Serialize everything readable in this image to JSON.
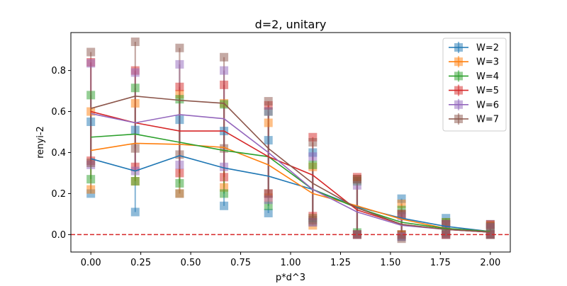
{
  "chart_data": {
    "type": "line",
    "title": "d=2, unitary",
    "xlabel": "p*d^3",
    "ylabel": "renyi-2",
    "xlim": [
      -0.1,
      2.1
    ],
    "ylim": [
      -0.085,
      0.985
    ],
    "xticks": [
      0.0,
      0.25,
      0.5,
      0.75,
      1.0,
      1.25,
      1.5,
      1.75,
      2.0
    ],
    "xtick_labels": [
      "0.00",
      "0.25",
      "0.50",
      "0.75",
      "1.00",
      "1.25",
      "1.50",
      "1.75",
      "2.00"
    ],
    "yticks": [
      0.0,
      0.2,
      0.4,
      0.6,
      0.8
    ],
    "ytick_labels": [
      "0.0",
      "0.2",
      "0.4",
      "0.6",
      "0.8"
    ],
    "grid": false,
    "legend_position": "upper-right",
    "reference_line": {
      "y": 0.0,
      "color": "#d62728",
      "style": "dashed"
    },
    "x": [
      0.0,
      0.2222,
      0.4444,
      0.6667,
      0.8889,
      1.1111,
      1.3333,
      1.5556,
      1.7778,
      2.0
    ],
    "series": [
      {
        "name": "W=2",
        "color": "#1f77b4",
        "values": [
          0.37,
          0.31,
          0.385,
          0.325,
          0.285,
          0.22,
          0.135,
          0.08,
          0.04,
          0.015
        ],
        "samples": [
          [
            0.55,
            0.2
          ],
          [
            0.51,
            0.11
          ],
          [
            0.56,
            0.2
          ],
          [
            0.505,
            0.14
          ],
          [
            0.46,
            0.105
          ],
          [
            0.4,
            0.06
          ],
          [
            0.27,
            0.0
          ],
          [
            0.175,
            -0.01
          ],
          [
            0.08,
            0.01
          ],
          [
            0.05,
            0.0
          ]
        ]
      },
      {
        "name": "W=3",
        "color": "#ff7f0e",
        "values": [
          0.41,
          0.445,
          0.44,
          0.425,
          0.34,
          0.2,
          0.14,
          0.075,
          0.03,
          0.015
        ],
        "samples": [
          [
            0.6,
            0.22
          ],
          [
            0.64,
            0.26
          ],
          [
            0.685,
            0.2
          ],
          [
            0.64,
            0.23
          ],
          [
            0.545,
            0.18
          ],
          [
            0.33,
            0.045
          ],
          [
            0.27,
            0.0
          ],
          [
            0.15,
            0.0
          ],
          [
            0.06,
            0.0
          ],
          [
            0.045,
            0.0
          ]
        ]
      },
      {
        "name": "W=4",
        "color": "#2ca02c",
        "values": [
          0.475,
          0.49,
          0.45,
          0.41,
          0.38,
          0.22,
          0.13,
          0.06,
          0.03,
          0.015
        ],
        "samples": [
          [
            0.68,
            0.27
          ],
          [
            0.715,
            0.26
          ],
          [
            0.66,
            0.25
          ],
          [
            0.635,
            0.2
          ],
          [
            0.6,
            0.14
          ],
          [
            0.34,
            0.08
          ],
          [
            0.26,
            0.01
          ],
          [
            0.12,
            0.0
          ],
          [
            0.06,
            0.01
          ],
          [
            0.04,
            0.0
          ]
        ]
      },
      {
        "name": "W=5",
        "color": "#d62728",
        "values": [
          0.6,
          0.545,
          0.505,
          0.505,
          0.38,
          0.29,
          0.12,
          0.05,
          0.025,
          0.012
        ],
        "samples": [
          [
            0.84,
            0.36
          ],
          [
            0.8,
            0.33
          ],
          [
            0.72,
            0.3
          ],
          [
            0.73,
            0.28
          ],
          [
            0.63,
            0.2
          ],
          [
            0.475,
            0.09
          ],
          [
            0.28,
            0.0
          ],
          [
            0.1,
            0.0
          ],
          [
            0.05,
            0.0
          ],
          [
            0.05,
            0.0
          ]
        ]
      },
      {
        "name": "W=6",
        "color": "#9467bd",
        "values": [
          0.59,
          0.545,
          0.585,
          0.565,
          0.4,
          0.22,
          0.11,
          0.045,
          0.025,
          0.012
        ],
        "samples": [
          [
            0.835,
            0.34
          ],
          [
            0.79,
            0.31
          ],
          [
            0.83,
            0.34
          ],
          [
            0.8,
            0.33
          ],
          [
            0.6,
            0.17
          ],
          [
            0.38,
            0.06
          ],
          [
            0.24,
            0.0
          ],
          [
            0.09,
            -0.01
          ],
          [
            0.05,
            0.0
          ],
          [
            0.035,
            0.0
          ]
        ]
      },
      {
        "name": "W=7",
        "color": "#8c564b",
        "values": [
          0.615,
          0.675,
          0.655,
          0.64,
          0.42,
          0.25,
          0.13,
          0.05,
          0.025,
          0.012
        ],
        "samples": [
          [
            0.89,
            0.35
          ],
          [
            0.94,
            0.42
          ],
          [
            0.91,
            0.39
          ],
          [
            0.865,
            0.42
          ],
          [
            0.65,
            0.2
          ],
          [
            0.45,
            0.07
          ],
          [
            0.27,
            0.0
          ],
          [
            0.1,
            -0.02
          ],
          [
            0.05,
            0.0
          ],
          [
            0.035,
            0.0
          ]
        ]
      }
    ]
  }
}
